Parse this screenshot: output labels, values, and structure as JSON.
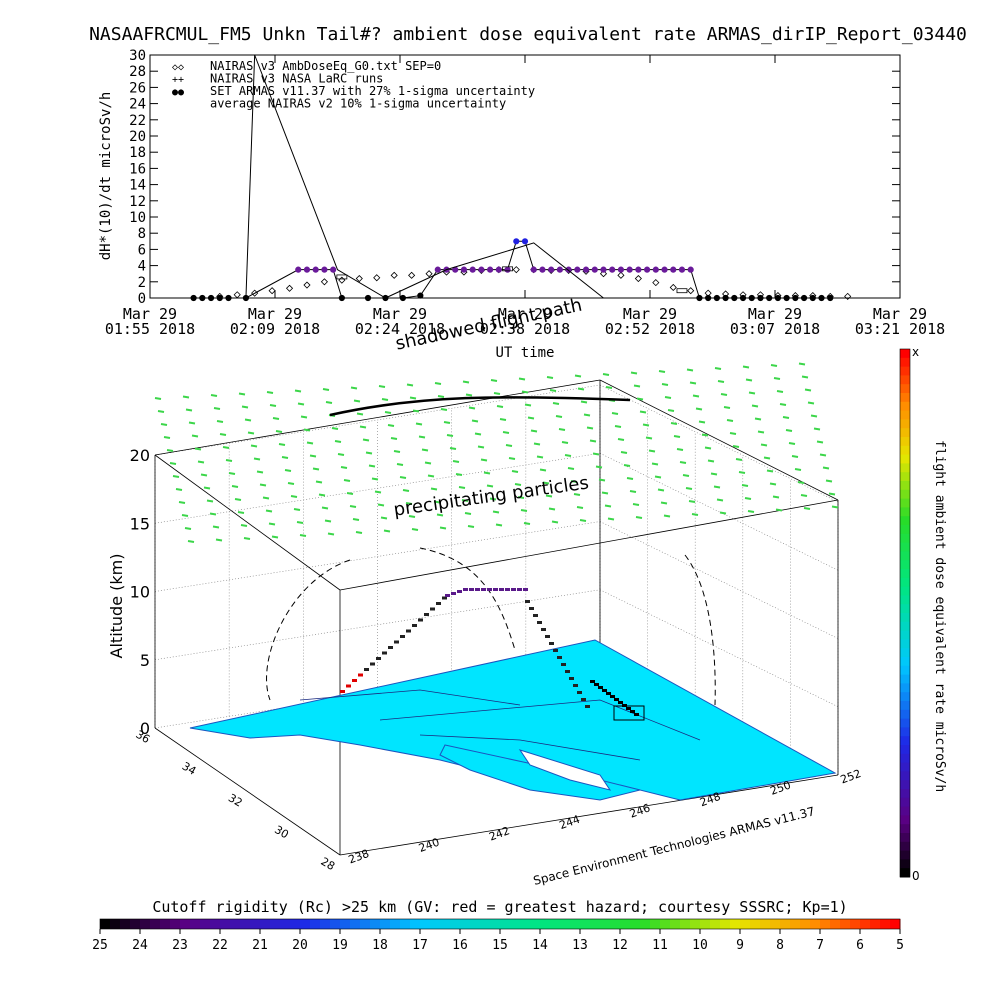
{
  "title": "NASAAFRCMUL_FM5 Unkn Tail#? ambient dose equivalent rate ARMAS_dirIP_Report_03440",
  "chart_data": [
    {
      "type": "line",
      "ylabel": "dH*(10)/dt microSv/h",
      "xlabel": "UT time",
      "ylim": [
        0,
        30
      ],
      "yticks": [
        0,
        2,
        4,
        6,
        8,
        10,
        12,
        14,
        16,
        18,
        20,
        22,
        24,
        26,
        28,
        30
      ],
      "xticks": [
        {
          "line1": "Mar 29",
          "line2": "01:55 2018"
        },
        {
          "line1": "Mar 29",
          "line2": "02:09 2018"
        },
        {
          "line1": "Mar 29",
          "line2": "02:24 2018"
        },
        {
          "line1": "Mar 29",
          "line2": "02:38 2018"
        },
        {
          "line1": "Mar 29",
          "line2": "02:52 2018"
        },
        {
          "line1": "Mar 29",
          "line2": "03:07 2018"
        },
        {
          "line1": "Mar 29",
          "line2": "03:21 2018"
        }
      ],
      "x_minutes_range": [
        0,
        86
      ],
      "legend": [
        {
          "symbol": "◇◇",
          "label": "NAIRAS v3 AmbDoseEq_G0.txt SEP=0"
        },
        {
          "symbol": "++",
          "label": "NAIRAS v3 NASA LaRC runs"
        },
        {
          "symbol": "●●",
          "label": "SET ARMAS v11.37 with 27% 1-sigma uncertainty"
        },
        {
          "symbol": "",
          "label": "average NAIRAS v2 10% 1-sigma uncertainty"
        }
      ],
      "annotation": "shadowed flight path",
      "series": [
        {
          "name": "NAIRAS v3 AmbDoseEq_G0.txt SEP=0",
          "x": [
            8,
            10,
            12,
            14,
            16,
            18,
            20,
            22,
            24,
            26,
            28,
            30,
            32,
            34,
            36,
            38,
            40,
            42,
            44,
            46,
            48,
            50,
            52,
            54,
            56,
            58,
            60,
            62,
            64,
            66,
            68,
            70,
            72,
            74,
            76,
            78,
            80
          ],
          "values": [
            0.2,
            0.4,
            0.6,
            0.9,
            1.2,
            1.6,
            2.0,
            2.2,
            2.4,
            2.5,
            2.8,
            2.8,
            3.0,
            3.2,
            3.2,
            3.4,
            3.5,
            3.5,
            3.5,
            3.4,
            3.4,
            3.3,
            3.0,
            2.8,
            2.4,
            1.9,
            1.3,
            0.9,
            0.6,
            0.5,
            0.4,
            0.4,
            0.3,
            0.3,
            0.3,
            0.2,
            0.2
          ]
        },
        {
          "name": "SET ARMAS v11.37 with 27% 1-sigma uncertainty",
          "x": [
            5,
            6,
            7,
            8,
            9,
            11,
            17,
            18,
            19,
            20,
            21,
            22,
            25,
            27,
            29,
            31,
            33,
            34,
            35,
            36,
            37,
            38,
            39,
            40,
            41,
            42,
            43,
            44,
            45,
            46,
            47,
            48,
            49,
            50,
            51,
            52,
            53,
            54,
            55,
            56,
            57,
            58,
            59,
            60,
            61,
            62,
            63,
            64,
            65,
            66,
            67,
            68,
            69,
            70,
            71,
            72,
            73,
            74,
            75,
            76,
            77,
            78
          ],
          "values": [
            0,
            0,
            0,
            0,
            0,
            0,
            3.5,
            3.5,
            3.5,
            3.5,
            3.5,
            0,
            0,
            0,
            0,
            0.3,
            3.5,
            3.5,
            3.5,
            3.5,
            3.5,
            3.5,
            3.5,
            3.5,
            3.5,
            7.0,
            7.0,
            3.5,
            3.5,
            3.5,
            3.5,
            3.5,
            3.5,
            3.5,
            3.5,
            3.5,
            3.5,
            3.5,
            3.5,
            3.5,
            3.5,
            3.5,
            3.5,
            3.5,
            3.5,
            3.5,
            0,
            0,
            0,
            0,
            0,
            0,
            0,
            0,
            0,
            0,
            0,
            0,
            0,
            0,
            0,
            0
          ]
        },
        {
          "name": "average NAIRAS v2 10% 1-sigma uncertainty",
          "x": [
            11,
            12,
            21.5,
            27,
            34,
            44,
            52
          ],
          "values": [
            0,
            32,
            3.5,
            0,
            3.5,
            6.8,
            0
          ]
        }
      ]
    },
    {
      "type": "scatter",
      "title_in_plot": "precipitating particles",
      "zlabel": "Altitude (km)",
      "zticks": [
        0,
        5,
        10,
        15,
        20
      ],
      "latitude_ticks": [
        28,
        30,
        32,
        34,
        36
      ],
      "longitude_ticks": [
        238,
        240,
        242,
        244,
        246,
        248,
        250,
        252
      ],
      "credit": "Space Environment Technologies ARMAS v11.37",
      "colorbar": {
        "label": "flight ambient dose equivalent rate microSv/h",
        "top_label": "x",
        "bottom_label": "0"
      }
    }
  ],
  "bottom_colorbar": {
    "title": "Cutoff rigidity (Rc) >25 km (GV: red = greatest hazard; courtesy SSSRC; Kp=1)",
    "ticks": [
      "25",
      "24",
      "23",
      "22",
      "21",
      "20",
      "19",
      "18",
      "17",
      "16",
      "15",
      "14",
      "13",
      "12",
      "11",
      "10",
      "9",
      "8",
      "7",
      "6",
      "5"
    ]
  },
  "colors": {
    "armas_marker": "#2b1fb0",
    "armas_fill": "#6a1b9a",
    "ocean": "#00e5ff",
    "precip": "#3cd64a"
  }
}
